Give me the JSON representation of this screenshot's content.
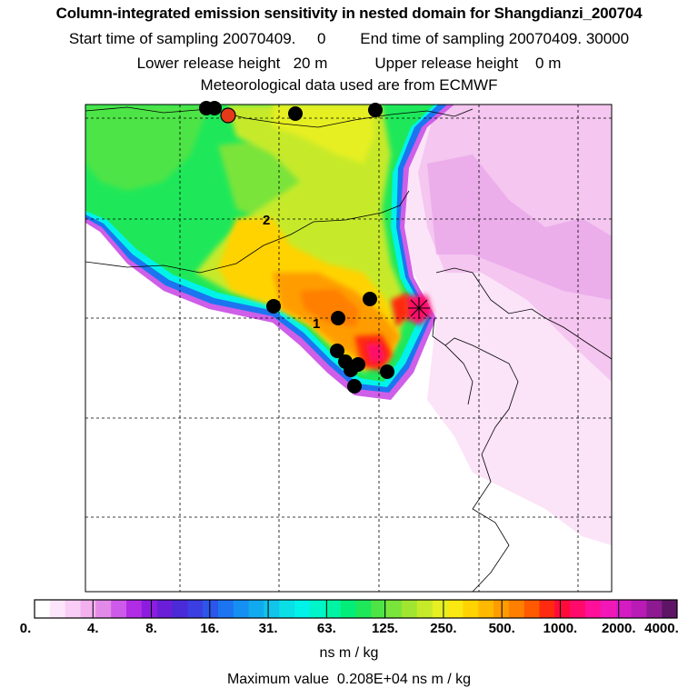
{
  "title": "Column-integrated emission sensitivity in nested domain for Shangdianzi_200704",
  "start_time": "Start time of sampling 20070409.     0",
  "end_time": "End time of sampling 20070409. 30000",
  "lower_release": "Lower release height   20 m",
  "upper_release": "Upper release height    0 m",
  "met_data": "Meteorological data used are from ECMWF",
  "colorbar": {
    "labels": [
      "0.",
      "4.",
      "8.",
      "16.",
      "31.",
      "63.",
      "125.",
      "250.",
      "500.",
      "1000.",
      "2000.",
      "4000."
    ],
    "colors": [
      "#ffffff",
      "#fde6fb",
      "#f9cdf5",
      "#f2b0ef",
      "#e38ae8",
      "#cd5ae8",
      "#b02de5",
      "#8c1de0",
      "#6a1ed8",
      "#4b2ad8",
      "#3b3ee0",
      "#2c56ea",
      "#1d74f0",
      "#168ff2",
      "#12aaef",
      "#10c4ea",
      "#0bdfe6",
      "#00f2e8",
      "#00f6c8",
      "#00f4a3",
      "#02ee78",
      "#1ee85a",
      "#4ee446",
      "#7ae43a",
      "#a0e631",
      "#c6ea2a",
      "#e6ef22",
      "#fae812",
      "#ffd300",
      "#ffb900",
      "#ff9d00",
      "#ff7f00",
      "#ff5a00",
      "#ff2a10",
      "#ff0a3a",
      "#ff0a6a",
      "#ff109a",
      "#f218b8",
      "#d51cc2",
      "#b81bb6",
      "#8e1a92",
      "#5e1565"
    ]
  },
  "unit": "ns m / kg",
  "max_value": "Maximum value  0.208E+04 ns m / kg",
  "contour_labels": [
    "2",
    "1"
  ],
  "site_marker_color": "#e53a1a",
  "dot_color": "#000000"
}
